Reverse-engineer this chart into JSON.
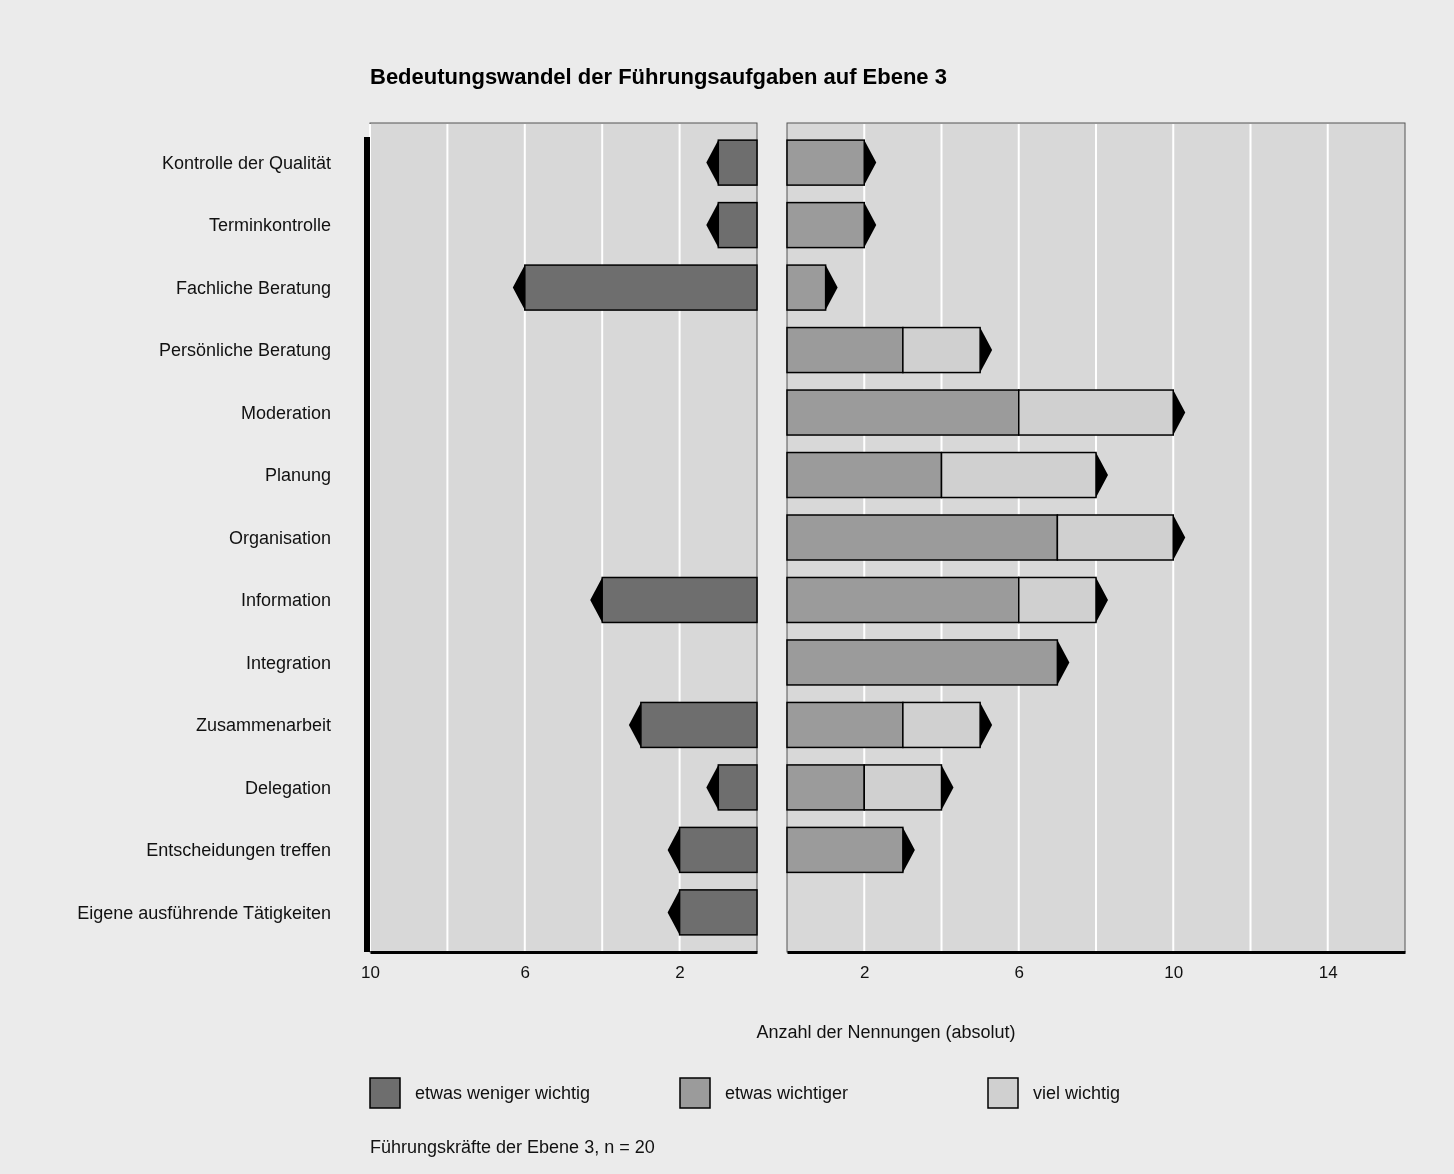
{
  "chart_data": [
    {
      "type": "bar",
      "orientation": "horizontal",
      "stacked": true,
      "title": "Bedeutungswandel der Führungsaufgaben auf Ebene 3",
      "categories": [
        "Kontrolle der Qualität",
        "Terminkontrolle",
        "Fachliche Beratung",
        "Persönliche Beratung",
        "Moderation",
        "Planung",
        "Organisation",
        "Information",
        "Integration",
        "Zusammenarbeit",
        "Delegation",
        "Entscheidungen treffen",
        "Eigene ausführende Tätigkeiten"
      ],
      "series": [
        {
          "name": "etwas weniger wichtig",
          "color": "#6e6e6e",
          "values": [
            1,
            1,
            6,
            0,
            0,
            0,
            0,
            4,
            0,
            3,
            1,
            2,
            2
          ]
        }
      ],
      "xlim": [
        10,
        0
      ],
      "xticks": [
        10,
        {
          "value": 8,
          "label": null
        },
        6,
        {
          "value": 4,
          "label": null
        },
        2
      ],
      "grid": "x",
      "legend": "bottom"
    },
    {
      "type": "bar",
      "orientation": "horizontal",
      "stacked": true,
      "xlabel": "Anzahl der Nennungen (absolut)",
      "categories": [
        "Kontrolle der Qualität",
        "Terminkontrolle",
        "Fachliche Beratung",
        "Persönliche Beratung",
        "Moderation",
        "Planung",
        "Organisation",
        "Information",
        "Integration",
        "Zusammenarbeit",
        "Delegation",
        "Entscheidungen treffen",
        "Eigene ausführende Tätigkeiten"
      ],
      "series": [
        {
          "name": "etwas wichtiger",
          "color": "#9b9b9b",
          "values": [
            2,
            2,
            1,
            3,
            6,
            4,
            7,
            6,
            7,
            3,
            2,
            3,
            0
          ]
        },
        {
          "name": "viel wichtig",
          "color": "#d0d0d0",
          "values": [
            0,
            0,
            0,
            2,
            4,
            4,
            3,
            2,
            0,
            2,
            2,
            0,
            0
          ]
        }
      ],
      "xlim": [
        0,
        16
      ],
      "xticks": [
        2,
        {
          "value": 4,
          "label": null
        },
        6,
        {
          "value": 8,
          "label": null
        },
        10,
        {
          "value": 12,
          "label": null
        },
        14
      ],
      "grid": "x",
      "legend": "bottom",
      "tick_labels": "x",
      "annotations": [
        "Führungskräfte der Ebene 3, n = 20"
      ]
    }
  ]
}
